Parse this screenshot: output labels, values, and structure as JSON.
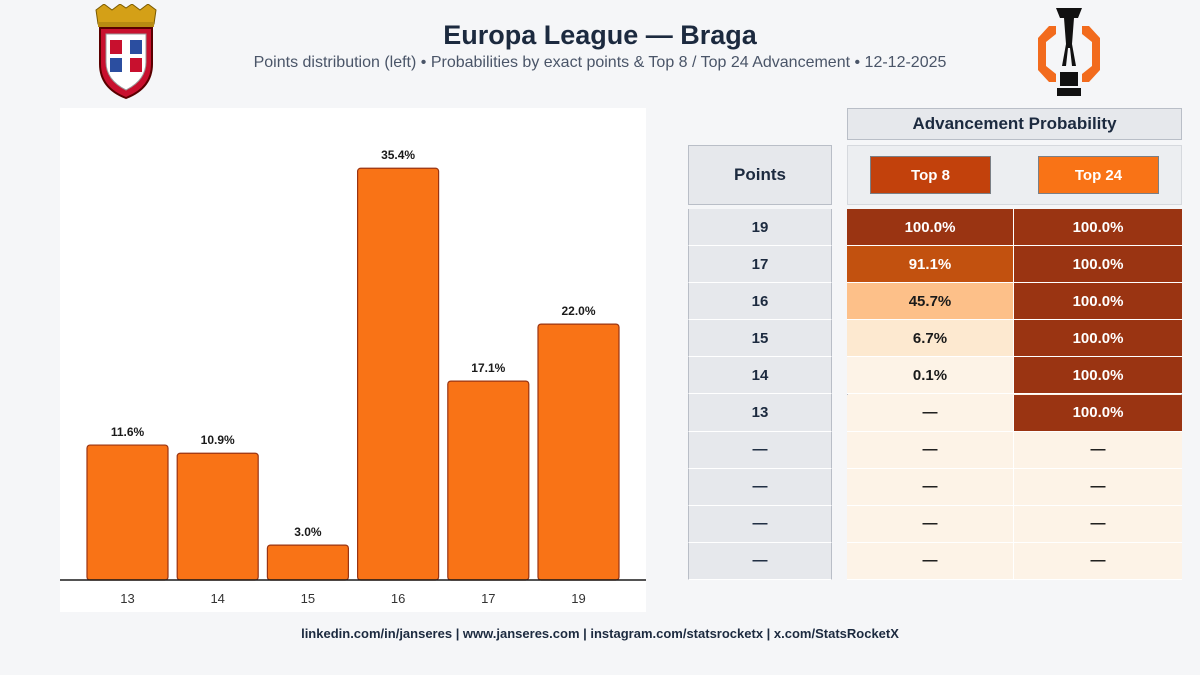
{
  "header": {
    "title": "Europa League — Braga",
    "subtitle": "Points distribution (left) • Probabilities by exact points & Top 8 / Top 24 Advancement • 12-12-2025"
  },
  "logos": {
    "left": "braga-crest-icon",
    "right": "europa-league-trophy-icon"
  },
  "chart_data": {
    "type": "bar",
    "categories": [
      "13",
      "14",
      "15",
      "16",
      "17",
      "19"
    ],
    "values": [
      11.6,
      10.9,
      3.0,
      35.4,
      17.1,
      22.0
    ],
    "data_labels": [
      "11.6%",
      "10.9%",
      "3.0%",
      "35.4%",
      "17.1%",
      "22.0%"
    ],
    "title": "",
    "xlabel": "",
    "ylabel": "",
    "ylim": [
      0,
      38
    ],
    "grid": false,
    "bar_color": "#f97316",
    "bar_edge_color": "#9a3412"
  },
  "table": {
    "group_title": "Advancement Probability",
    "points_header": "Points",
    "top8_header": "Top 8",
    "top24_header": "Top 24",
    "rows": [
      {
        "points": "19",
        "top8": "100.0%",
        "top24": "100.0%",
        "top8_value": 100.0,
        "top24_value": 100.0
      },
      {
        "points": "17",
        "top8": "91.1%",
        "top24": "100.0%",
        "top8_value": 91.1,
        "top24_value": 100.0
      },
      {
        "points": "16",
        "top8": "45.7%",
        "top24": "100.0%",
        "top8_value": 45.7,
        "top24_value": 100.0
      },
      {
        "points": "15",
        "top8": "6.7%",
        "top24": "100.0%",
        "top8_value": 6.7,
        "top24_value": 100.0
      },
      {
        "points": "14",
        "top8": "0.1%",
        "top24": "100.0%",
        "top8_value": 0.1,
        "top24_value": 100.0
      },
      {
        "points": "13",
        "top8": "—",
        "top24": "100.0%",
        "top8_value": null,
        "top24_value": 100.0
      },
      {
        "points": "—",
        "top8": "—",
        "top24": "—",
        "top8_value": null,
        "top24_value": null
      },
      {
        "points": "—",
        "top8": "—",
        "top24": "—",
        "top8_value": null,
        "top24_value": null
      },
      {
        "points": "—",
        "top8": "—",
        "top24": "—",
        "top8_value": null,
        "top24_value": null
      },
      {
        "points": "—",
        "top8": "—",
        "top24": "—",
        "top8_value": null,
        "top24_value": null
      }
    ],
    "colors": {
      "top8_pill": "#c2410c",
      "top24_pill": "#f97316",
      "empty_cell": "#fdf3e7"
    }
  },
  "footer": {
    "text": "linkedin.com/in/janseres | www.janseres.com | instagram.com/statsrocketx | x.com/StatsRocketX"
  }
}
